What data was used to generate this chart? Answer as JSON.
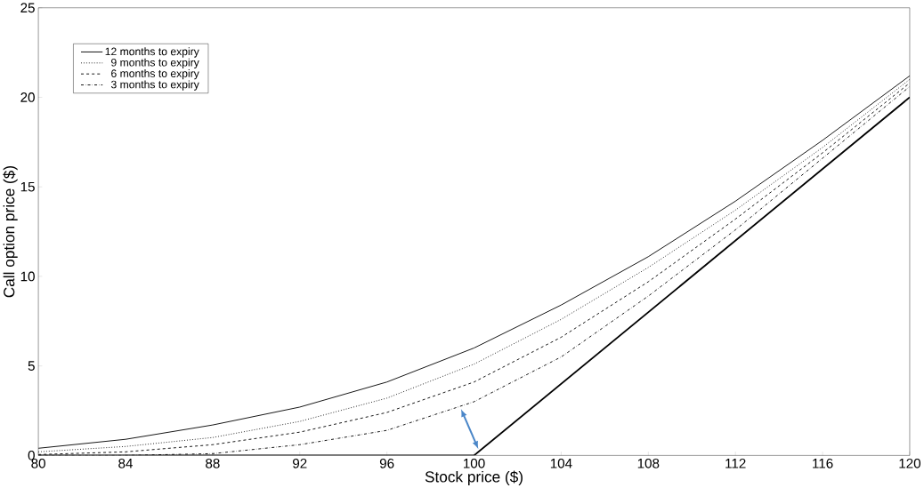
{
  "chart_data": {
    "type": "line",
    "xlabel": "Stock price ($)",
    "ylabel": "Call option price ($)",
    "x": [
      80,
      84,
      88,
      92,
      96,
      100,
      104,
      108,
      112,
      116,
      120
    ],
    "series": [
      {
        "name": "12 months to expiry",
        "color": "#000000",
        "line_style": "solid",
        "values": [
          0.4,
          0.9,
          1.7,
          2.7,
          4.1,
          6.0,
          8.4,
          11.1,
          14.2,
          17.6,
          21.2
        ]
      },
      {
        "name": "9 months to expiry",
        "color": "#000000",
        "line_style": "dotted",
        "values": [
          0.2,
          0.5,
          1.0,
          1.9,
          3.2,
          5.1,
          7.6,
          10.5,
          13.7,
          17.2,
          21.0
        ]
      },
      {
        "name": "6 months to expiry",
        "color": "#000000",
        "line_style": "dashed",
        "values": [
          0.05,
          0.2,
          0.6,
          1.3,
          2.4,
          4.1,
          6.6,
          9.7,
          13.2,
          16.9,
          20.8
        ]
      },
      {
        "name": "3 months to expiry",
        "color": "#000000",
        "line_style": "dashdot",
        "values": [
          0,
          0,
          0.1,
          0.6,
          1.4,
          3.0,
          5.5,
          8.9,
          12.6,
          16.6,
          20.6
        ]
      },
      {
        "color": "#000000",
        "line_style": "solid",
        "x": [
          80,
          100,
          120
        ],
        "values": [
          0,
          0,
          20
        ]
      }
    ],
    "xlim": [
      80,
      120
    ],
    "ylim": [
      0,
      25
    ],
    "xticks": [
      80,
      84,
      88,
      92,
      96,
      100,
      104,
      108,
      112,
      116,
      120
    ],
    "yticks": [
      0,
      5,
      10,
      15,
      20,
      25
    ],
    "grid": false,
    "legend": "top left",
    "marker": "none"
  }
}
